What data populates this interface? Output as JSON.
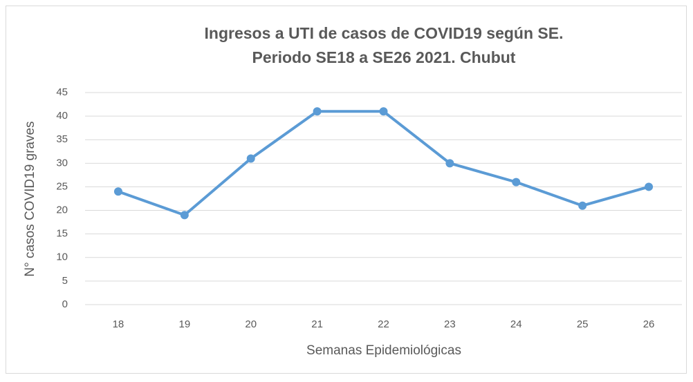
{
  "chart_data": {
    "type": "line",
    "title": [
      "Ingresos a UTI de casos de COVID19 según SE.",
      "Periodo SE18 a SE26 2021. Chubut"
    ],
    "x_label": "Semanas Epidemiológicas",
    "y_label": "N° casos COVID19 graves",
    "categories": [
      "18",
      "19",
      "20",
      "21",
      "22",
      "23",
      "24",
      "25",
      "26"
    ],
    "values": [
      24,
      19,
      31,
      41,
      41,
      30,
      26,
      21,
      25
    ],
    "color": "#5b9bd5",
    "ylim": [
      0,
      45
    ],
    "yticks": [
      0,
      5,
      10,
      15,
      20,
      25,
      30,
      35,
      40,
      45
    ],
    "grid": true
  }
}
